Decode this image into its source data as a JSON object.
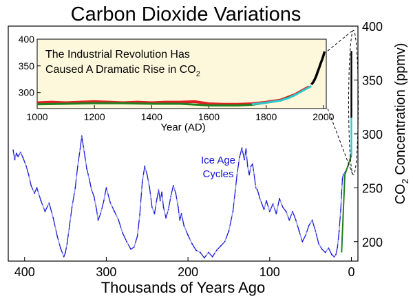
{
  "chart_data": [
    {
      "type": "line",
      "title": "Carbon Dioxide Variations",
      "xlabel": "Thousands of Years Ago",
      "ylabel_prefix": "CO",
      "ylabel_sub": "2",
      "ylabel_suffix": " Concentration (ppmv)",
      "xlim": [
        420,
        -8
      ],
      "ylim": [
        182,
        400
      ],
      "x_ticks": [
        400,
        300,
        200,
        100,
        0
      ],
      "y_ticks": [
        200,
        250,
        300,
        350,
        400
      ],
      "annotation_line1": "Ice Age",
      "annotation_line2": "Cycles",
      "colors": {
        "ice_core": "#1010d8",
        "ice_core_light": "#9999ee",
        "inset_link": "#000000"
      },
      "series": [
        {
          "values_x": [
            414,
            412,
            410,
            408,
            405,
            402,
            398,
            395,
            392,
            388,
            385,
            380,
            375,
            370,
            365,
            360,
            356,
            352,
            350,
            348,
            345,
            342,
            338,
            335,
            332,
            330,
            328,
            326,
            324,
            322,
            320,
            318,
            315,
            312,
            310,
            307,
            303,
            300,
            295,
            290,
            285,
            280,
            275,
            270,
            266,
            262,
            259,
            256,
            253,
            250,
            247,
            244,
            241,
            238,
            236,
            234,
            232,
            230,
            227,
            224,
            221,
            218,
            215,
            212,
            210,
            208,
            205,
            200,
            195,
            190,
            185,
            180,
            175,
            170,
            165,
            160,
            155,
            150,
            145,
            140,
            137,
            134,
            131,
            129,
            127,
            125,
            123,
            121,
            119,
            117,
            115,
            112,
            110,
            107,
            104,
            100,
            96,
            92,
            88,
            84,
            80,
            76,
            72,
            68,
            64,
            60,
            56,
            52,
            48,
            44,
            40,
            36,
            32,
            28,
            24,
            21,
            19,
            17,
            15,
            13,
            12,
            11,
            10,
            8,
            6,
            4,
            2,
            0.5
          ],
          "values_y": [
            285,
            276,
            282,
            279,
            283,
            278,
            270,
            262,
            252,
            245,
            250,
            238,
            228,
            236,
            222,
            205,
            194,
            186,
            190,
            198,
            215,
            232,
            250,
            270,
            286,
            298,
            288,
            278,
            268,
            262,
            255,
            248,
            242,
            230,
            220,
            226,
            238,
            250,
            236,
            228,
            220,
            208,
            200,
            193,
            195,
            205,
            225,
            255,
            270,
            262,
            250,
            232,
            226,
            240,
            248,
            238,
            246,
            232,
            222,
            230,
            242,
            252,
            245,
            232,
            220,
            226,
            215,
            206,
            198,
            192,
            190,
            185,
            190,
            186,
            192,
            196,
            200,
            210,
            228,
            262,
            278,
            287,
            276,
            286,
            270,
            262,
            270,
            272,
            262,
            250,
            248,
            240,
            236,
            230,
            238,
            228,
            235,
            226,
            240,
            232,
            228,
            220,
            228,
            220,
            210,
            200,
            206,
            215,
            220,
            210,
            198,
            193,
            190,
            194,
            188,
            186,
            188,
            195,
            210,
            230,
            245,
            258,
            262,
            264,
            267,
            270,
            276,
            282
          ]
        }
      ]
    },
    {
      "type": "line",
      "title_line1": "The Industrial Revolution Has",
      "title_line2_prefix": "Caused A Dramatic Rise in CO",
      "title_line2_sub": "2",
      "xlabel": "Year (AD)",
      "xlim": [
        1000,
        2010
      ],
      "ylim": [
        270,
        400
      ],
      "x_ticks": [
        1000,
        1200,
        1400,
        1600,
        1800,
        2000
      ],
      "y_ticks": [
        300,
        350,
        400
      ],
      "background": "#fdf8dc",
      "series": [
        {
          "color": "#e02020",
          "x": [
            1000,
            1050,
            1100,
            1150,
            1200,
            1250,
            1300,
            1350,
            1400,
            1450,
            1500,
            1550,
            1600,
            1650,
            1700,
            1750,
            1800,
            1850,
            1900,
            1950
          ],
          "y": [
            281,
            282,
            281,
            282,
            283,
            282,
            281,
            282,
            281,
            282,
            282,
            283,
            279,
            278,
            278,
            279,
            282,
            286,
            296,
            311
          ]
        },
        {
          "color": "#208020",
          "x": [
            1000,
            1100,
            1200,
            1300,
            1400,
            1500,
            1600,
            1700,
            1750,
            1800,
            1850,
            1900
          ],
          "y": [
            278,
            279,
            280,
            280,
            279,
            279,
            276,
            276,
            277,
            281,
            285,
            295
          ]
        },
        {
          "color": "#30c8d0",
          "x": [
            1750,
            1800,
            1850,
            1880,
            1910,
            1940,
            1958
          ],
          "y": [
            278,
            281,
            285,
            290,
            298,
            307,
            312
          ]
        },
        {
          "color": "#000000",
          "x": [
            1958,
            1965,
            1970,
            1975,
            1980,
            1985,
            1990,
            1995,
            2000,
            2004
          ],
          "y": [
            315,
            320,
            325,
            331,
            339,
            346,
            354,
            361,
            369,
            377
          ]
        }
      ]
    }
  ]
}
